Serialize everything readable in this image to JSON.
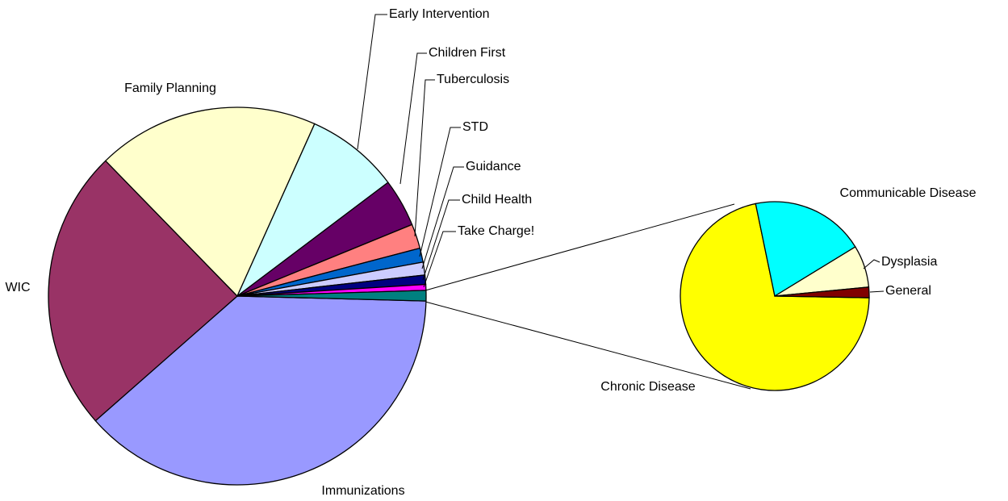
{
  "chart_data": {
    "type": "pie",
    "categories": [
      "Immunizations",
      "WIC",
      "Family Planning",
      "Early Intervention",
      "Children First",
      "Tuberculosis",
      "STD",
      "Guidance",
      "Child Health",
      "Take Charge!",
      null
    ],
    "values": [
      38.1,
      24.2,
      19,
      8,
      4.1,
      2.1,
      1.2,
      1.1,
      0.8,
      0.5,
      0.9
    ],
    "colors": [
      "#9999ff",
      "#993366",
      "#ffffcc",
      "#ccffff",
      "#660066",
      "#ff8080",
      "#0066cc",
      "#ccccff",
      "#000080",
      "#ff00ff",
      "#008080"
    ],
    "secondary": {
      "categories": [
        "Chronic Disease",
        "Communicable Disease",
        "Dysplasia",
        "General"
      ],
      "values": [
        71.4,
        19.5,
        7.2,
        1.8
      ],
      "colors": [
        "#ffff00",
        "#00ffff",
        "#ffffcc",
        "#800000"
      ]
    }
  }
}
